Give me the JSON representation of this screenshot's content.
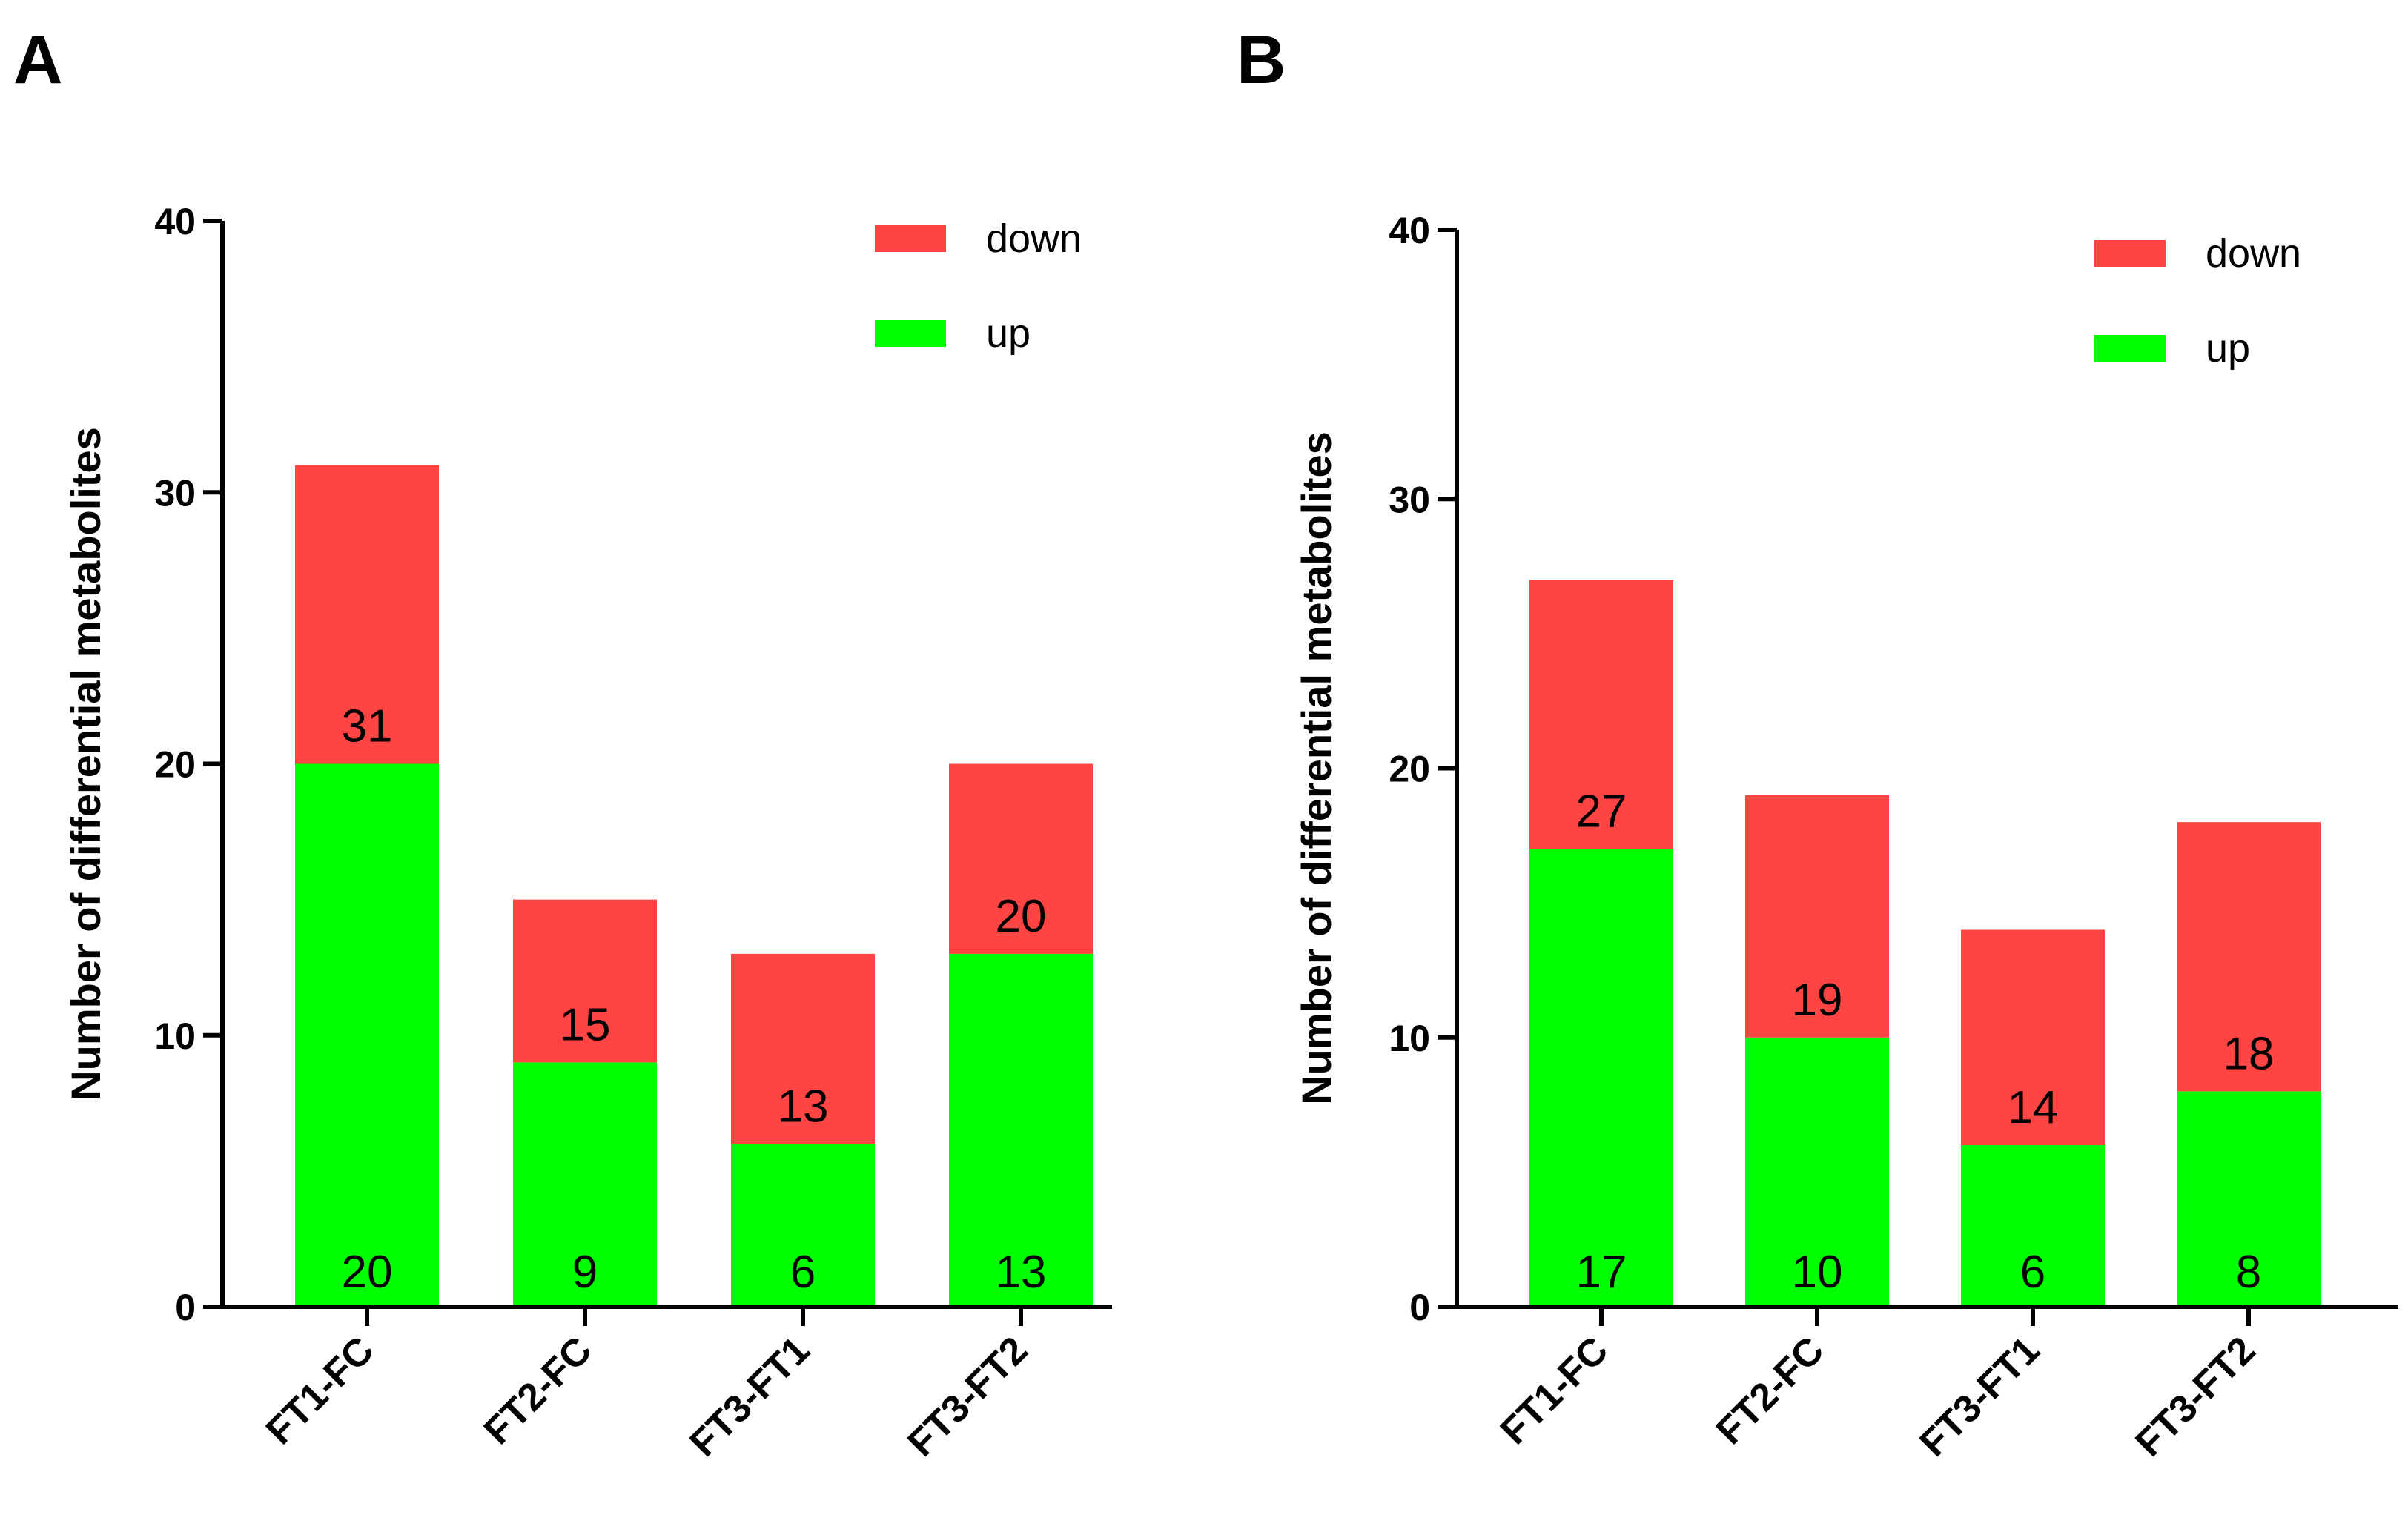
{
  "chart_data": [
    {
      "type": "bar",
      "stacked": true,
      "panel": "A",
      "title": "",
      "xlabel": "",
      "ylabel": "Number of differential metabolites",
      "ylim": [
        0,
        40
      ],
      "yticks": [
        0,
        10,
        20,
        30,
        40
      ],
      "categories": [
        "FT1-FC",
        "FT2-FC",
        "FT3-FT1",
        "FT3-FT2"
      ],
      "series": [
        {
          "name": "up",
          "color": "#00ff00",
          "values": [
            20,
            9,
            6,
            13
          ]
        },
        {
          "name": "down",
          "color": "#ff4444",
          "values": [
            11,
            6,
            7,
            7
          ]
        }
      ],
      "totals": [
        31,
        15,
        13,
        20
      ],
      "legend": {
        "position": "top-right",
        "entries": [
          "down",
          "up"
        ]
      }
    },
    {
      "type": "bar",
      "stacked": true,
      "panel": "B",
      "title": "",
      "xlabel": "",
      "ylabel": "Number of differential metabolites",
      "ylim": [
        0,
        40
      ],
      "yticks": [
        0,
        10,
        20,
        30,
        40
      ],
      "categories": [
        "FT1-FC",
        "FT2-FC",
        "FT3-FT1",
        "FT3-FT2"
      ],
      "series": [
        {
          "name": "up",
          "color": "#00ff00",
          "values": [
            17,
            10,
            6,
            8
          ]
        },
        {
          "name": "down",
          "color": "#ff4444",
          "values": [
            10,
            9,
            8,
            10
          ]
        }
      ],
      "totals": [
        27,
        19,
        14,
        18
      ],
      "legend": {
        "position": "top-right",
        "entries": [
          "down",
          "up"
        ]
      }
    }
  ]
}
